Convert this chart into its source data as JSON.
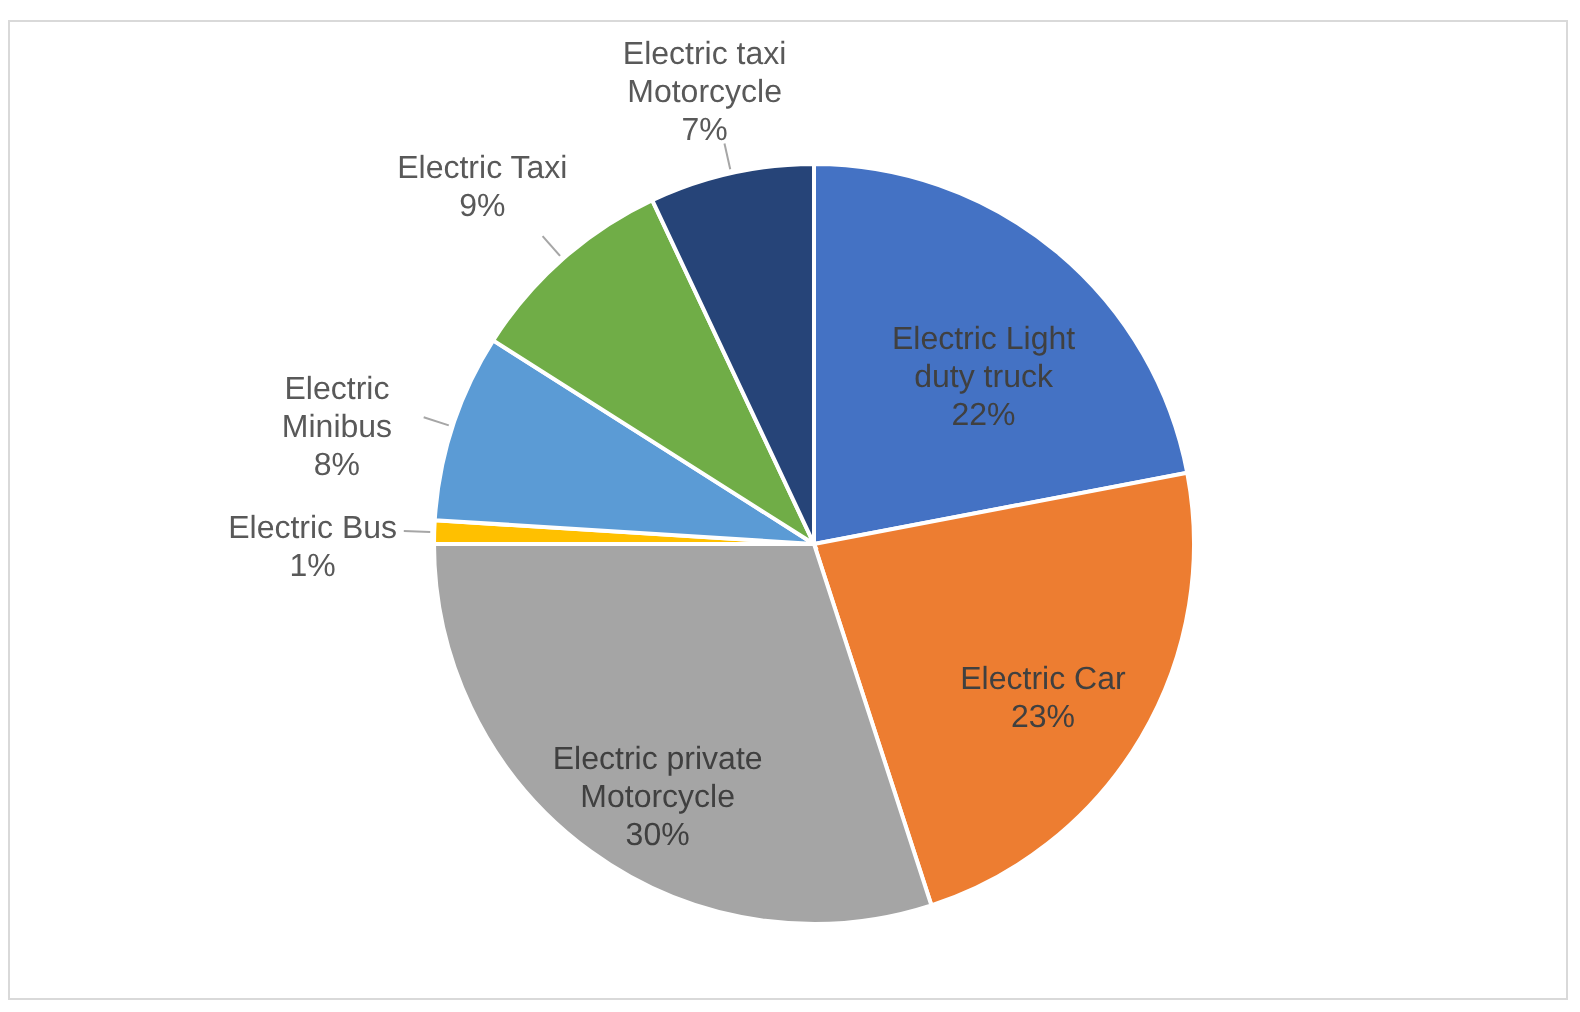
{
  "chart_data": {
    "type": "pie",
    "categories": [
      "Electric Light duty truck",
      "Electric Car",
      "Electric private Motorcycle",
      "Electric Bus",
      "Electric Minibus",
      "Electric Taxi",
      "Electric taxi Motorcycle"
    ],
    "values": [
      22,
      23,
      30,
      1,
      8,
      9,
      7
    ],
    "value_labels": [
      "22%",
      "23%",
      "30%",
      "1%",
      "8%",
      "9%",
      "7%"
    ],
    "colors": [
      "#4472c4",
      "#ed7d31",
      "#a5a5a5",
      "#ffc000",
      "#5b9bd5",
      "#70ad47",
      "#264478"
    ]
  }
}
